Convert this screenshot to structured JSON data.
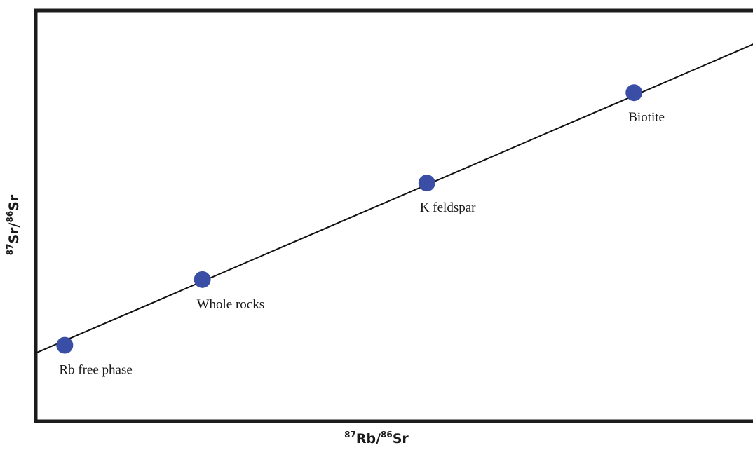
{
  "chart_data": {
    "type": "scatter",
    "title": "",
    "xlabel": {
      "sup1": "87",
      "base1": "Rb/",
      "sup2": "86",
      "base2": "Sr"
    },
    "ylabel": {
      "sup1": "87",
      "base1": "Sr/",
      "sup2": "86",
      "base2": "Sr"
    },
    "xlim": [
      0,
      1
    ],
    "ylim": [
      0,
      1
    ],
    "grid": false,
    "ticks": false,
    "points": [
      {
        "name": "Rb free phase",
        "x": 0.04,
        "y": 0.185
      },
      {
        "name": "Whole rocks",
        "x": 0.23,
        "y": 0.345
      },
      {
        "name": "K feldspar",
        "x": 0.54,
        "y": 0.58
      },
      {
        "name": "Biotite",
        "x": 0.826,
        "y": 0.8
      }
    ],
    "isochron": {
      "x": [
        0,
        1
      ],
      "y": [
        0.166,
        0.925
      ]
    },
    "point_color": "#3b4ea6",
    "line_color": "#111111",
    "axis_color": "#1c1c1c"
  }
}
